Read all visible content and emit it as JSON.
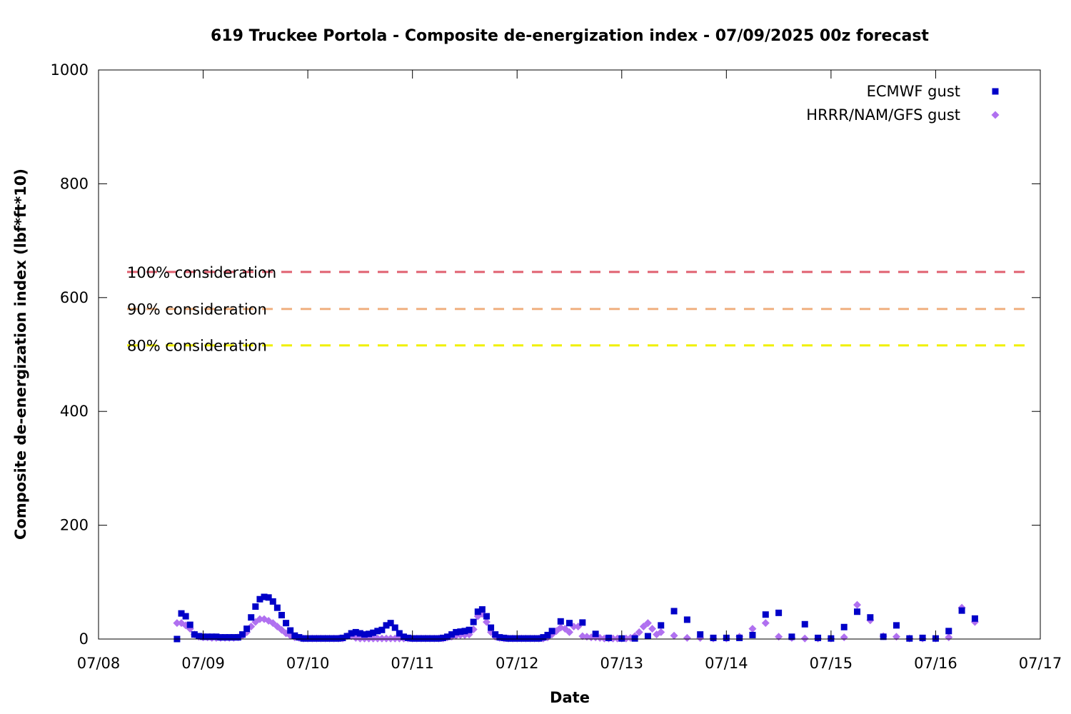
{
  "chart_data": {
    "type": "scatter",
    "title": "619 Truckee Portola - Composite de-energization index - 07/09/2025 00z forecast",
    "xlabel": "Date",
    "ylabel": "Composite de-energization index (lbf*ft*10)",
    "xlim": [
      "07/08",
      "07/17"
    ],
    "ylim": [
      0,
      1000
    ],
    "x_ticks": [
      "07/08",
      "07/09",
      "07/10",
      "07/11",
      "07/12",
      "07/13",
      "07/14",
      "07/15",
      "07/16",
      "07/17"
    ],
    "y_ticks": [
      0,
      200,
      400,
      600,
      800,
      1000
    ],
    "grid": false,
    "legend_position": "top-right",
    "reference_lines": [
      {
        "label": "100% consideration",
        "value": 645,
        "color": "#e06070"
      },
      {
        "label": "90% consideration",
        "value": 580,
        "color": "#f0b080"
      },
      {
        "label": "80% consideration",
        "value": 516,
        "color": "#f0f000"
      }
    ],
    "series": [
      {
        "name": "ECMWF gust",
        "marker": "square",
        "color": "#0000c8",
        "points": [
          [
            "07/08 18:00",
            0
          ],
          [
            "07/08 19:00",
            45
          ],
          [
            "07/08 20:00",
            40
          ],
          [
            "07/08 21:00",
            25
          ],
          [
            "07/08 22:00",
            8
          ],
          [
            "07/08 23:00",
            5
          ],
          [
            "07/09 00:00",
            4
          ],
          [
            "07/09 01:00",
            4
          ],
          [
            "07/09 02:00",
            4
          ],
          [
            "07/09 03:00",
            4
          ],
          [
            "07/09 04:00",
            3
          ],
          [
            "07/09 05:00",
            3
          ],
          [
            "07/09 06:00",
            3
          ],
          [
            "07/09 07:00",
            3
          ],
          [
            "07/09 08:00",
            3
          ],
          [
            "07/09 09:00",
            8
          ],
          [
            "07/09 10:00",
            18
          ],
          [
            "07/09 11:00",
            38
          ],
          [
            "07/09 12:00",
            57
          ],
          [
            "07/09 13:00",
            70
          ],
          [
            "07/09 14:00",
            74
          ],
          [
            "07/09 15:00",
            73
          ],
          [
            "07/09 16:00",
            66
          ],
          [
            "07/09 17:00",
            55
          ],
          [
            "07/09 18:00",
            42
          ],
          [
            "07/09 19:00",
            28
          ],
          [
            "07/09 20:00",
            15
          ],
          [
            "07/09 21:00",
            6
          ],
          [
            "07/09 22:00",
            3
          ],
          [
            "07/09 23:00",
            1
          ],
          [
            "07/10 00:00",
            1
          ],
          [
            "07/10 01:00",
            1
          ],
          [
            "07/10 02:00",
            1
          ],
          [
            "07/10 03:00",
            1
          ],
          [
            "07/10 04:00",
            1
          ],
          [
            "07/10 05:00",
            1
          ],
          [
            "07/10 06:00",
            1
          ],
          [
            "07/10 07:00",
            1
          ],
          [
            "07/10 08:00",
            2
          ],
          [
            "07/10 09:00",
            5
          ],
          [
            "07/10 10:00",
            10
          ],
          [
            "07/10 11:00",
            12
          ],
          [
            "07/10 12:00",
            10
          ],
          [
            "07/10 13:00",
            8
          ],
          [
            "07/10 14:00",
            9
          ],
          [
            "07/10 15:00",
            11
          ],
          [
            "07/10 16:00",
            14
          ],
          [
            "07/10 17:00",
            16
          ],
          [
            "07/10 18:00",
            24
          ],
          [
            "07/10 19:00",
            28
          ],
          [
            "07/10 20:00",
            20
          ],
          [
            "07/10 21:00",
            10
          ],
          [
            "07/10 22:00",
            4
          ],
          [
            "07/10 23:00",
            2
          ],
          [
            "07/11 00:00",
            1
          ],
          [
            "07/11 01:00",
            1
          ],
          [
            "07/11 02:00",
            1
          ],
          [
            "07/11 03:00",
            1
          ],
          [
            "07/11 04:00",
            1
          ],
          [
            "07/11 05:00",
            1
          ],
          [
            "07/11 06:00",
            1
          ],
          [
            "07/11 07:00",
            2
          ],
          [
            "07/11 08:00",
            4
          ],
          [
            "07/11 09:00",
            8
          ],
          [
            "07/11 10:00",
            12
          ],
          [
            "07/11 11:00",
            13
          ],
          [
            "07/11 12:00",
            14
          ],
          [
            "07/11 13:00",
            16
          ],
          [
            "07/11 14:00",
            30
          ],
          [
            "07/11 15:00",
            48
          ],
          [
            "07/11 16:00",
            52
          ],
          [
            "07/11 17:00",
            40
          ],
          [
            "07/11 18:00",
            20
          ],
          [
            "07/11 19:00",
            8
          ],
          [
            "07/11 20:00",
            3
          ],
          [
            "07/11 21:00",
            2
          ],
          [
            "07/11 22:00",
            1
          ],
          [
            "07/11 23:00",
            1
          ],
          [
            "07/12 00:00",
            1
          ],
          [
            "07/12 01:00",
            1
          ],
          [
            "07/12 02:00",
            1
          ],
          [
            "07/12 03:00",
            1
          ],
          [
            "07/12 04:00",
            1
          ],
          [
            "07/12 05:00",
            1
          ],
          [
            "07/12 06:00",
            3
          ],
          [
            "07/12 07:00",
            7
          ],
          [
            "07/12 08:00",
            14
          ],
          [
            "07/12 10:00",
            31
          ],
          [
            "07/12 12:00",
            28
          ],
          [
            "07/12 15:00",
            29
          ],
          [
            "07/12 18:00",
            9
          ],
          [
            "07/12 21:00",
            2
          ],
          [
            "07/13 00:00",
            1
          ],
          [
            "07/13 03:00",
            1
          ],
          [
            "07/13 06:00",
            5
          ],
          [
            "07/13 09:00",
            24
          ],
          [
            "07/13 12:00",
            49
          ],
          [
            "07/13 15:00",
            34
          ],
          [
            "07/13 18:00",
            8
          ],
          [
            "07/13 21:00",
            2
          ],
          [
            "07/14 00:00",
            2
          ],
          [
            "07/14 03:00",
            2
          ],
          [
            "07/14 06:00",
            7
          ],
          [
            "07/14 09:00",
            43
          ],
          [
            "07/14 12:00",
            46
          ],
          [
            "07/14 15:00",
            4
          ],
          [
            "07/14 18:00",
            26
          ],
          [
            "07/14 21:00",
            2
          ],
          [
            "07/15 00:00",
            1
          ],
          [
            "07/15 03:00",
            21
          ],
          [
            "07/15 06:00",
            48
          ],
          [
            "07/15 09:00",
            38
          ],
          [
            "07/15 12:00",
            4
          ],
          [
            "07/15 15:00",
            24
          ],
          [
            "07/15 18:00",
            1
          ],
          [
            "07/15 21:00",
            2
          ],
          [
            "07/16 00:00",
            1
          ],
          [
            "07/16 03:00",
            14
          ],
          [
            "07/16 06:00",
            50
          ],
          [
            "07/16 09:00",
            36
          ]
        ]
      },
      {
        "name": "HRRR/NAM/GFS gust",
        "marker": "diamond",
        "color": "#b070f0",
        "points": [
          [
            "07/08 18:00",
            28
          ],
          [
            "07/08 19:00",
            28
          ],
          [
            "07/08 20:00",
            24
          ],
          [
            "07/08 21:00",
            18
          ],
          [
            "07/08 22:00",
            8
          ],
          [
            "07/08 23:00",
            4
          ],
          [
            "07/09 00:00",
            3
          ],
          [
            "07/09 01:00",
            3
          ],
          [
            "07/09 02:00",
            2
          ],
          [
            "07/09 03:00",
            2
          ],
          [
            "07/09 04:00",
            2
          ],
          [
            "07/09 05:00",
            2
          ],
          [
            "07/09 06:00",
            2
          ],
          [
            "07/09 07:00",
            2
          ],
          [
            "07/09 08:00",
            3
          ],
          [
            "07/09 09:00",
            6
          ],
          [
            "07/09 10:00",
            12
          ],
          [
            "07/09 11:00",
            22
          ],
          [
            "07/09 12:00",
            30
          ],
          [
            "07/09 13:00",
            35
          ],
          [
            "07/09 14:00",
            35
          ],
          [
            "07/09 15:00",
            32
          ],
          [
            "07/09 16:00",
            28
          ],
          [
            "07/09 17:00",
            22
          ],
          [
            "07/09 18:00",
            16
          ],
          [
            "07/09 19:00",
            10
          ],
          [
            "07/09 20:00",
            6
          ],
          [
            "07/09 21:00",
            3
          ],
          [
            "07/09 22:00",
            2
          ],
          [
            "07/09 23:00",
            1
          ],
          [
            "07/10 00:00",
            1
          ],
          [
            "07/10 01:00",
            1
          ],
          [
            "07/10 02:00",
            1
          ],
          [
            "07/10 03:00",
            1
          ],
          [
            "07/10 04:00",
            1
          ],
          [
            "07/10 05:00",
            1
          ],
          [
            "07/10 06:00",
            1
          ],
          [
            "07/10 07:00",
            1
          ],
          [
            "07/10 08:00",
            1
          ],
          [
            "07/10 09:00",
            5
          ],
          [
            "07/10 10:00",
            5
          ],
          [
            "07/10 11:00",
            2
          ],
          [
            "07/10 12:00",
            1
          ],
          [
            "07/10 13:00",
            1
          ],
          [
            "07/10 14:00",
            1
          ],
          [
            "07/10 15:00",
            1
          ],
          [
            "07/10 16:00",
            1
          ],
          [
            "07/10 17:00",
            1
          ],
          [
            "07/10 18:00",
            1
          ],
          [
            "07/10 19:00",
            1
          ],
          [
            "07/10 20:00",
            1
          ],
          [
            "07/10 21:00",
            1
          ],
          [
            "07/10 22:00",
            1
          ],
          [
            "07/10 23:00",
            1
          ],
          [
            "07/11 00:00",
            1
          ],
          [
            "07/11 01:00",
            1
          ],
          [
            "07/11 02:00",
            1
          ],
          [
            "07/11 03:00",
            1
          ],
          [
            "07/11 04:00",
            1
          ],
          [
            "07/11 05:00",
            1
          ],
          [
            "07/11 06:00",
            1
          ],
          [
            "07/11 07:00",
            1
          ],
          [
            "07/11 08:00",
            3
          ],
          [
            "07/11 09:00",
            4
          ],
          [
            "07/11 10:00",
            6
          ],
          [
            "07/11 11:00",
            7
          ],
          [
            "07/11 12:00",
            7
          ],
          [
            "07/11 13:00",
            8
          ],
          [
            "07/11 14:00",
            17
          ],
          [
            "07/11 15:00",
            40
          ],
          [
            "07/11 16:00",
            44
          ],
          [
            "07/11 17:00",
            30
          ],
          [
            "07/11 18:00",
            12
          ],
          [
            "07/11 19:00",
            4
          ],
          [
            "07/11 20:00",
            2
          ],
          [
            "07/11 21:00",
            1
          ],
          [
            "07/11 22:00",
            1
          ],
          [
            "07/11 23:00",
            1
          ],
          [
            "07/12 00:00",
            1
          ],
          [
            "07/12 01:00",
            1
          ],
          [
            "07/12 02:00",
            1
          ],
          [
            "07/12 03:00",
            1
          ],
          [
            "07/12 04:00",
            1
          ],
          [
            "07/12 05:00",
            1
          ],
          [
            "07/12 06:00",
            1
          ],
          [
            "07/12 07:00",
            3
          ],
          [
            "07/12 08:00",
            8
          ],
          [
            "07/12 09:00",
            14
          ],
          [
            "07/12 10:00",
            20
          ],
          [
            "07/12 11:00",
            18
          ],
          [
            "07/12 12:00",
            12
          ],
          [
            "07/12 13:00",
            22
          ],
          [
            "07/12 14:00",
            22
          ],
          [
            "07/12 15:00",
            5
          ],
          [
            "07/12 16:00",
            4
          ],
          [
            "07/12 17:00",
            3
          ],
          [
            "07/12 18:00",
            3
          ],
          [
            "07/12 19:00",
            2
          ],
          [
            "07/12 20:00",
            1
          ],
          [
            "07/12 21:00",
            1
          ],
          [
            "07/12 22:00",
            1
          ],
          [
            "07/12 23:00",
            1
          ],
          [
            "07/13 00:00",
            1
          ],
          [
            "07/13 01:00",
            1
          ],
          [
            "07/13 02:00",
            2
          ],
          [
            "07/13 03:00",
            5
          ],
          [
            "07/13 04:00",
            12
          ],
          [
            "07/13 05:00",
            22
          ],
          [
            "07/13 06:00",
            28
          ],
          [
            "07/13 07:00",
            18
          ],
          [
            "07/13 08:00",
            8
          ],
          [
            "07/13 09:00",
            12
          ],
          [
            "07/13 12:00",
            6
          ],
          [
            "07/13 15:00",
            2
          ],
          [
            "07/13 18:00",
            2
          ],
          [
            "07/13 21:00",
            1
          ],
          [
            "07/14 00:00",
            1
          ],
          [
            "07/14 03:00",
            4
          ],
          [
            "07/14 06:00",
            18
          ],
          [
            "07/14 09:00",
            28
          ],
          [
            "07/14 12:00",
            4
          ],
          [
            "07/14 15:00",
            2
          ],
          [
            "07/14 18:00",
            1
          ],
          [
            "07/14 21:00",
            1
          ],
          [
            "07/15 00:00",
            1
          ],
          [
            "07/15 03:00",
            3
          ],
          [
            "07/15 06:00",
            60
          ],
          [
            "07/15 09:00",
            33
          ],
          [
            "07/15 12:00",
            5
          ],
          [
            "07/15 15:00",
            4
          ],
          [
            "07/15 18:00",
            1
          ],
          [
            "07/15 21:00",
            1
          ],
          [
            "07/16 00:00",
            1
          ],
          [
            "07/16 03:00",
            3
          ],
          [
            "07/16 06:00",
            55
          ],
          [
            "07/16 09:00",
            30
          ]
        ]
      }
    ]
  }
}
